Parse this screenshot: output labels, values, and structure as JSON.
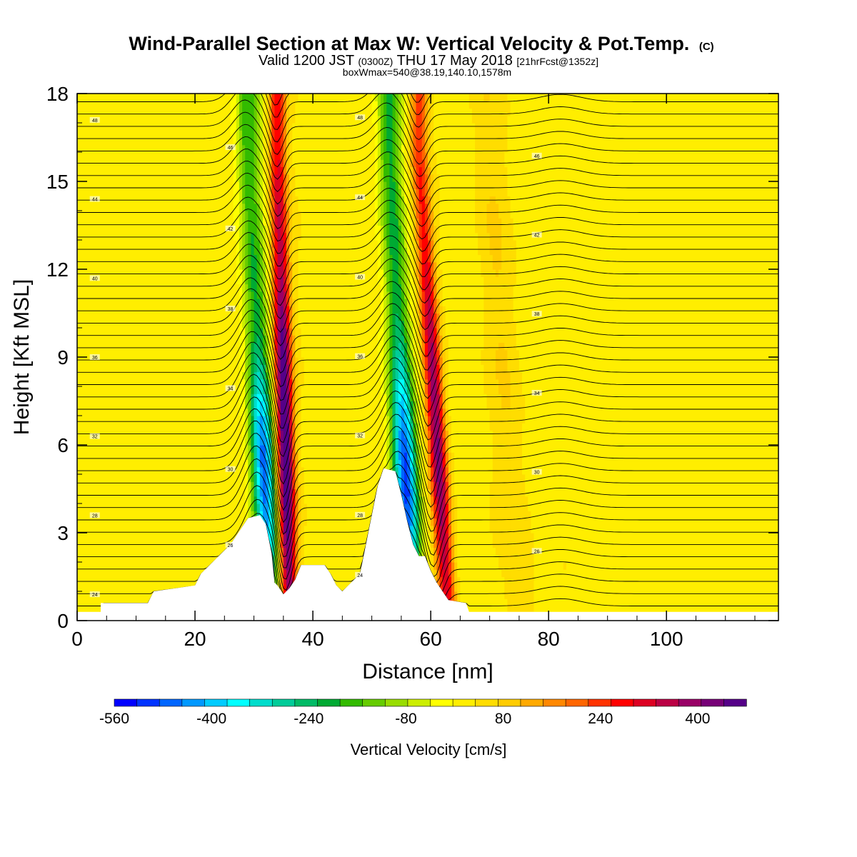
{
  "chart_data": {
    "type": "heatmap",
    "title": "Wind-Parallel Section at Max W: Vertical Velocity & Pot.Temp.",
    "title_mark": "(C)",
    "subtitle": {
      "part1": "Valid 1200 JST",
      "part2": "(0300Z)",
      "part3": "THU 17 May 2018",
      "part4": "[21hrFcst@1352z]"
    },
    "sub2": "boxWmax=540@38.19,140.10,1578m",
    "xlabel": "Distance [nm]",
    "ylabel": "Height [Kft MSL]",
    "xlim": [
      0,
      119
    ],
    "ylim": [
      0,
      18
    ],
    "x_ticks": [
      0,
      20,
      40,
      60,
      80,
      100
    ],
    "y_ticks": [
      0,
      3,
      6,
      9,
      12,
      15,
      18
    ],
    "grid": false,
    "terrain_kft": [
      [
        0,
        0.3
      ],
      [
        4,
        0.3
      ],
      [
        4,
        0.6
      ],
      [
        12,
        0.6
      ],
      [
        13,
        1.0
      ],
      [
        20,
        1.2
      ],
      [
        21,
        1.6
      ],
      [
        24,
        2.2
      ],
      [
        26,
        2.6
      ],
      [
        27,
        2.9
      ],
      [
        28,
        3.2
      ],
      [
        29,
        3.5
      ],
      [
        31,
        3.6
      ],
      [
        32,
        3.3
      ],
      [
        32.5,
        2.8
      ],
      [
        33,
        2.3
      ],
      [
        33.5,
        1.3
      ],
      [
        34,
        1.2
      ],
      [
        35,
        0.9
      ],
      [
        36,
        1.1
      ],
      [
        37,
        1.4
      ],
      [
        38,
        1.9
      ],
      [
        42,
        1.9
      ],
      [
        43,
        1.6
      ],
      [
        44,
        1.2
      ],
      [
        45,
        1.0
      ],
      [
        47,
        1.4
      ],
      [
        48,
        1.6
      ],
      [
        49,
        2.6
      ],
      [
        50,
        3.6
      ],
      [
        51,
        4.6
      ],
      [
        52,
        5.2
      ],
      [
        54,
        5.1
      ],
      [
        55,
        4.3
      ],
      [
        56,
        3.4
      ],
      [
        57,
        2.6
      ],
      [
        58,
        2.2
      ],
      [
        59,
        2.2
      ],
      [
        60,
        1.7
      ],
      [
        61,
        1.3
      ],
      [
        62,
        1.0
      ],
      [
        63,
        0.7
      ],
      [
        66,
        0.6
      ],
      [
        66.5,
        0.3
      ],
      [
        119,
        0.3
      ]
    ],
    "updraft_bands": [
      {
        "x_bottom": 36,
        "x_top": 34,
        "peak_cm_s": 540
      },
      {
        "x_bottom": 63,
        "x_top": 58,
        "peak_cm_s": 420
      }
    ],
    "downdraft_bands": [
      {
        "x_bottom": 33,
        "x_top": 29,
        "peak_cm_s": -520
      },
      {
        "x_bottom": 57,
        "x_top": 53,
        "peak_cm_s": -560
      }
    ],
    "isentrope_label_values": [
      24,
      26,
      28,
      30,
      32,
      34,
      36,
      38,
      40,
      42,
      44,
      46,
      48
    ],
    "colorbar": {
      "label": "Vertical Velocity [cm/s]",
      "min": -560,
      "max": 480,
      "step": 40,
      "tick_values": [
        -560,
        -400,
        -240,
        -80,
        80,
        240,
        400
      ],
      "tick_labels": [
        "-560",
        "-400",
        "-240",
        "-80",
        "80",
        "240",
        "400"
      ],
      "colors": [
        "#0000ff",
        "#0033ff",
        "#0066ff",
        "#0099ff",
        "#00ccff",
        "#00ffff",
        "#00ddcc",
        "#00cc99",
        "#00bb66",
        "#00aa33",
        "#33bb00",
        "#66cc00",
        "#99dd00",
        "#ccee00",
        "#ffff00",
        "#ffee00",
        "#ffdd00",
        "#ffcc00",
        "#ffaa00",
        "#ff8800",
        "#ff6600",
        "#ff3300",
        "#ff0000",
        "#dd0022",
        "#bb0044",
        "#990066",
        "#770077",
        "#550088"
      ]
    }
  }
}
